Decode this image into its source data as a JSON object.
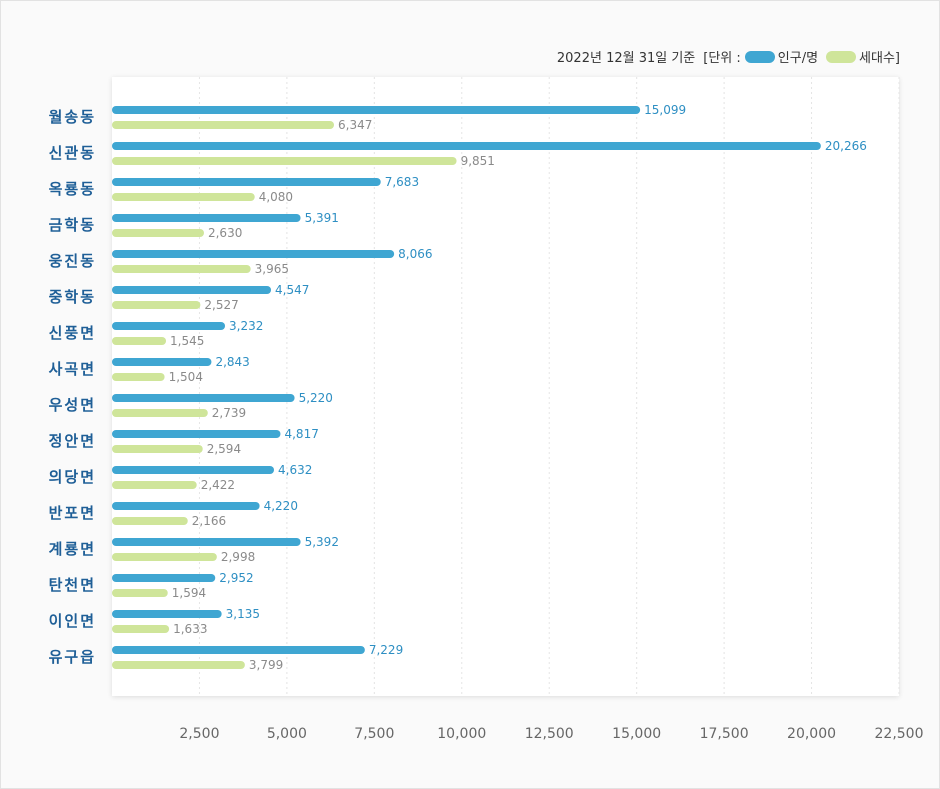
{
  "legend": {
    "date": "2022년 12월 31일 기준",
    "unit_prefix": "[단위 :",
    "series1_label": "인구/명",
    "series2_label": "세대수]"
  },
  "colors": {
    "population": "#3fa6d2",
    "households": "#cfe59a"
  },
  "chart_data": {
    "type": "bar",
    "orientation": "horizontal",
    "categories": [
      "월송동",
      "신관동",
      "옥룡동",
      "금학동",
      "웅진동",
      "중학동",
      "신풍면",
      "사곡면",
      "우성면",
      "정안면",
      "의당면",
      "반포면",
      "계룡면",
      "탄천면",
      "이인면",
      "유구읍"
    ],
    "series": [
      {
        "name": "인구/명",
        "values": [
          15099,
          20266,
          7683,
          5391,
          8066,
          4547,
          3232,
          2843,
          5220,
          4817,
          4632,
          4220,
          5392,
          2952,
          3135,
          7229
        ]
      },
      {
        "name": "세대수",
        "values": [
          6347,
          9851,
          4080,
          2630,
          3965,
          2527,
          1545,
          1504,
          2739,
          2594,
          2422,
          2166,
          2998,
          1594,
          1633,
          3799
        ]
      }
    ],
    "value_labels_1": [
      "15,099",
      "20,266",
      "7,683",
      "5,391",
      "8,066",
      "4,547",
      "3,232",
      "2,843",
      "5,220",
      "4,817",
      "4,632",
      "4,220",
      "5,392",
      "2,952",
      "3,135",
      "7,229"
    ],
    "value_labels_2": [
      "6,347",
      "9,851",
      "4,080",
      "2,630",
      "3,965",
      "2,527",
      "1,545",
      "1,504",
      "2,739",
      "2,594",
      "2,422",
      "2,166",
      "2,998",
      "1,594",
      "1,633",
      "3,799"
    ],
    "xlim": [
      0,
      22500
    ],
    "xticks": [
      2500,
      5000,
      7500,
      10000,
      12500,
      15000,
      17500,
      20000,
      22500
    ],
    "xtick_labels": [
      "2,500",
      "5,000",
      "7,500",
      "10,000",
      "12,500",
      "15,000",
      "17,500",
      "20,000",
      "22,500"
    ],
    "grid": true,
    "legend_position": "top-right"
  }
}
